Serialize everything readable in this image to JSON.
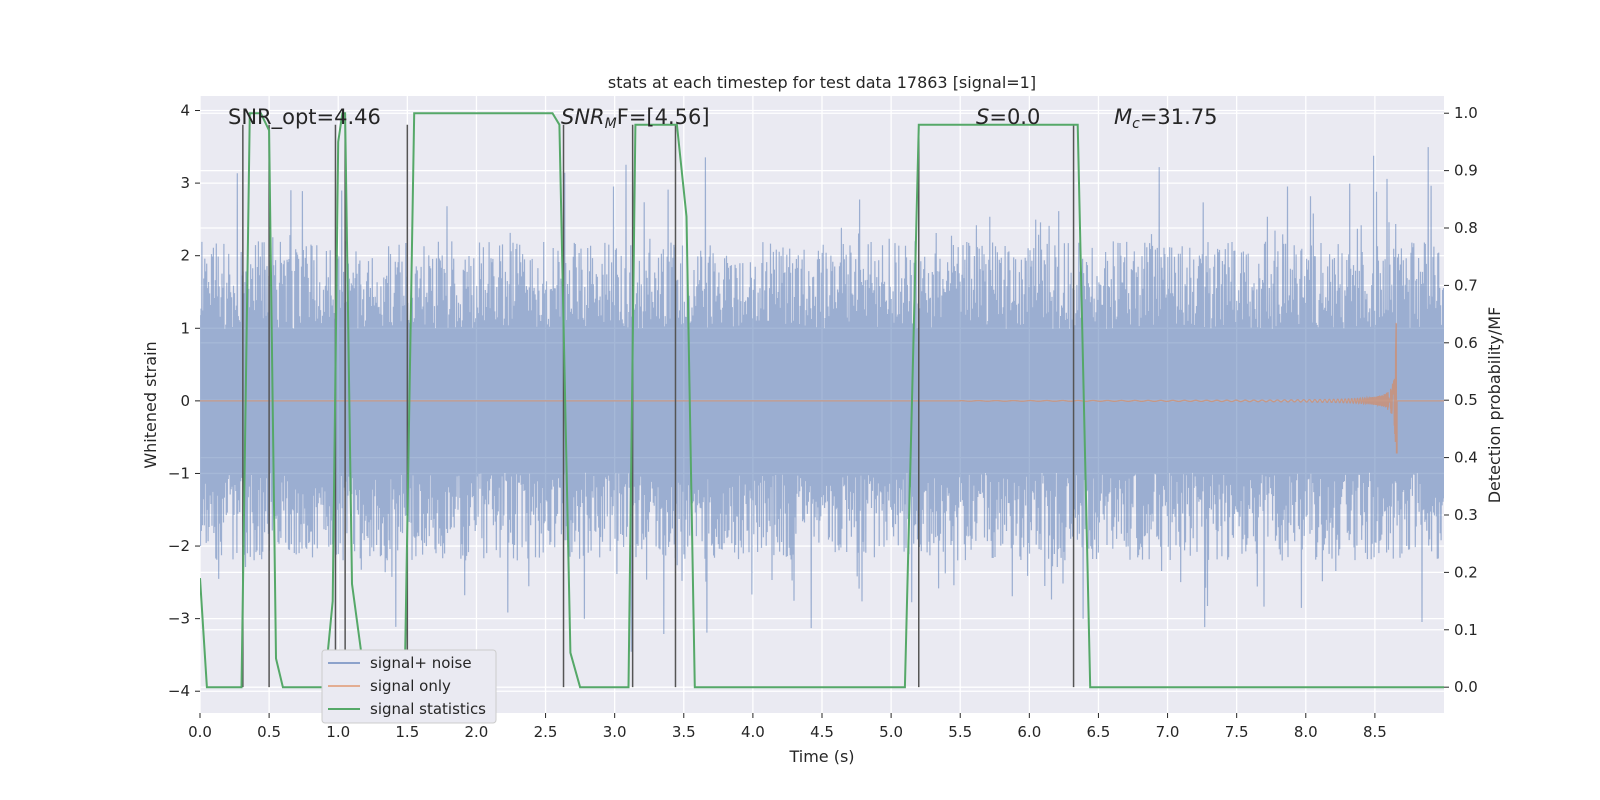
{
  "chart_data": {
    "type": "line",
    "title": "stats at each timestep for test data 17863 [signal=1]",
    "xlabel": "Time (s)",
    "ylabel_left": "Whitened strain",
    "ylabel_right": "Detection probability/MF",
    "xlim": [
      0.0,
      9.0
    ],
    "ylim_left": [
      -4.3,
      4.2
    ],
    "ylim_right": [
      -0.045,
      1.03
    ],
    "xticks": [
      "0.0",
      "0.5",
      "1.0",
      "1.5",
      "2.0",
      "2.5",
      "3.0",
      "3.5",
      "4.0",
      "4.5",
      "5.0",
      "5.5",
      "6.0",
      "6.5",
      "7.0",
      "7.5",
      "8.0",
      "8.5"
    ],
    "yticks_left": [
      "4",
      "3",
      "2",
      "1",
      "0",
      "−1",
      "−2",
      "−3",
      "−4"
    ],
    "yticks_right": [
      "1.0",
      "0.9",
      "0.8",
      "0.7",
      "0.6",
      "0.5",
      "0.4",
      "0.3",
      "0.2",
      "0.1",
      "0.0"
    ],
    "grid": true,
    "legend_position": "lower-left",
    "annotations": {
      "snr_opt": "SNR_opt=4.46",
      "snr_mf_sym": "SNR",
      "snr_mf_sub": "M",
      "snr_mf_rest": "F=[4.56]",
      "s_sym": "S",
      "s_rest": "=0.0",
      "mc_sym": "M",
      "mc_sub": "c",
      "mc_rest": "=31.75"
    },
    "series": [
      {
        "name": "signal+ noise",
        "color": "#4c72b0",
        "noise_envelope": {
          "typical_abs": 2.2,
          "peak_abs": 3.9
        }
      },
      {
        "name": "signal only",
        "color": "#dd8452",
        "chirp": {
          "start": 5.5,
          "end": 8.66,
          "peak_amplitude": 1.22
        }
      },
      {
        "name": "signal statistics",
        "color": "#55a868",
        "x": [
          0.0,
          0.05,
          0.1,
          0.25,
          0.3,
          0.36,
          0.38,
          0.44,
          0.5,
          0.55,
          0.6,
          0.9,
          0.96,
          1.0,
          1.03,
          1.05,
          1.1,
          1.2,
          1.3,
          1.4,
          1.48,
          1.55,
          1.6,
          2.55,
          2.6,
          2.68,
          2.75,
          2.85,
          3.05,
          3.1,
          3.15,
          3.2,
          3.25,
          3.45,
          3.52,
          3.58,
          3.65,
          5.1,
          5.2,
          5.25,
          5.3,
          6.3,
          6.35,
          6.44,
          6.5,
          9.0
        ],
        "y": [
          0.19,
          0.0,
          0.0,
          0.0,
          0.0,
          1.0,
          1.0,
          1.0,
          0.97,
          0.05,
          0.0,
          0.0,
          0.15,
          0.95,
          1.0,
          1.0,
          0.18,
          0.0,
          0.0,
          0.0,
          0.0,
          1.0,
          1.0,
          1.0,
          0.98,
          0.06,
          0.0,
          0.0,
          0.0,
          0.0,
          0.98,
          0.98,
          0.98,
          0.98,
          0.82,
          0.0,
          0.0,
          0.0,
          0.98,
          0.98,
          0.98,
          0.98,
          0.98,
          0.0,
          0.0,
          0.0
        ]
      },
      {
        "name": "detection markers",
        "color": "#555555",
        "x": [
          0.31,
          0.5,
          0.98,
          1.05,
          1.5,
          2.63,
          3.13,
          3.44,
          5.2,
          6.32
        ]
      }
    ]
  },
  "legend": {
    "items": [
      {
        "label": "signal+ noise",
        "color": "#4c72b0"
      },
      {
        "label": "signal only",
        "color": "#dd8452"
      },
      {
        "label": "signal statistics",
        "color": "#55a868"
      }
    ]
  }
}
